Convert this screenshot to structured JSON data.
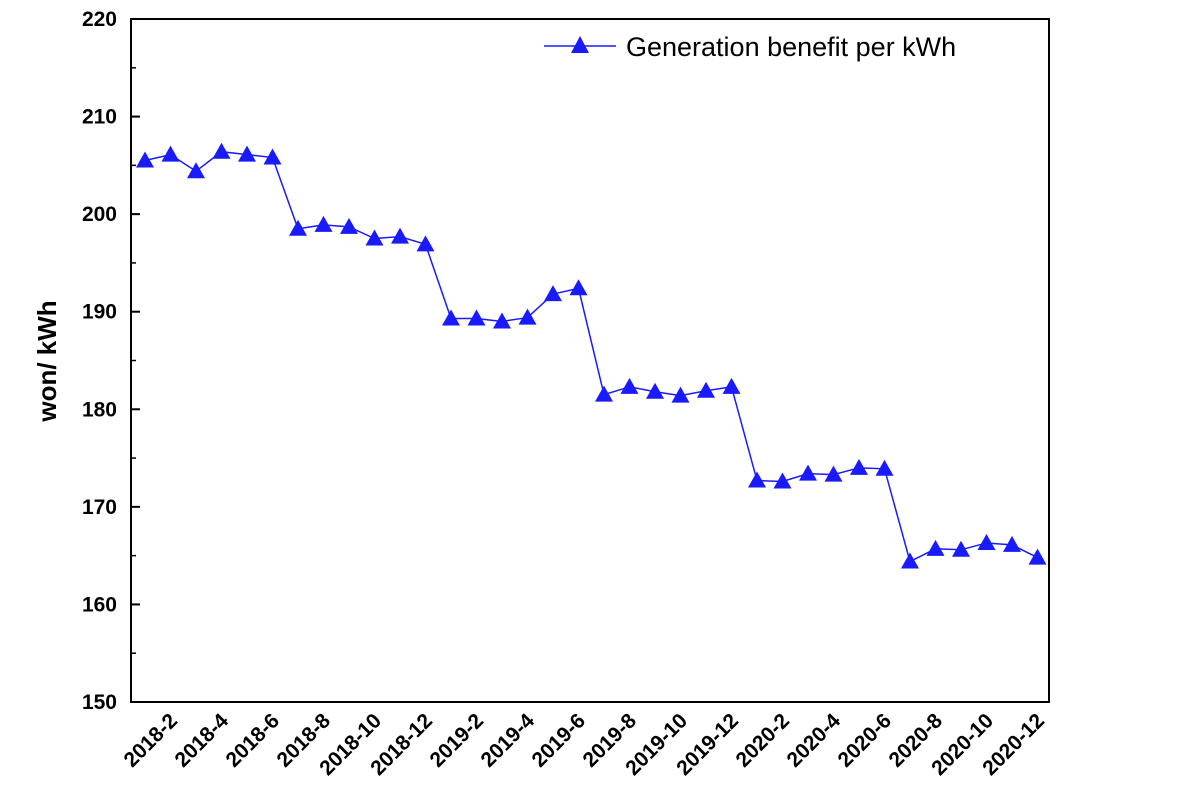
{
  "chart_data": {
    "type": "line",
    "title": "",
    "xlabel": "",
    "ylabel": "won/ kWh",
    "ylim": [
      150,
      220
    ],
    "yticks": [
      150,
      160,
      170,
      180,
      190,
      200,
      210,
      220
    ],
    "grid": false,
    "legend_position": "top-right",
    "colors": {
      "series": "#1a1aff",
      "axis": "#000000"
    },
    "x": [
      "2018-1",
      "2018-2",
      "2018-3",
      "2018-4",
      "2018-5",
      "2018-6",
      "2018-7",
      "2018-8",
      "2018-9",
      "2018-10",
      "2018-11",
      "2018-12",
      "2019-1",
      "2019-2",
      "2019-3",
      "2019-4",
      "2019-5",
      "2019-6",
      "2019-7",
      "2019-8",
      "2019-9",
      "2019-10",
      "2019-11",
      "2019-12",
      "2020-1",
      "2020-2",
      "2020-3",
      "2020-4",
      "2020-5",
      "2020-6",
      "2020-7",
      "2020-8",
      "2020-9",
      "2020-10",
      "2020-11",
      "2020-12"
    ],
    "xtick_labels": [
      "2018-2",
      "2018-4",
      "2018-6",
      "2018-8",
      "2018-10",
      "2018-12",
      "2019-2",
      "2019-4",
      "2019-6",
      "2019-8",
      "2019-10",
      "2019-12",
      "2020-2",
      "2020-4",
      "2020-6",
      "2020-8",
      "2020-10",
      "2020-12"
    ],
    "series": [
      {
        "name": "Generation benefit per kWh",
        "marker": "triangle",
        "values": [
          205.5,
          206.1,
          204.4,
          206.4,
          206.1,
          205.8,
          198.5,
          198.9,
          198.7,
          197.5,
          197.7,
          196.9,
          189.3,
          189.3,
          189.0,
          189.4,
          191.8,
          192.4,
          181.5,
          182.3,
          181.8,
          181.4,
          181.9,
          182.3,
          172.7,
          172.6,
          173.4,
          173.3,
          174.0,
          173.9,
          164.4,
          165.7,
          165.6,
          166.3,
          166.1,
          164.8
        ]
      }
    ]
  }
}
